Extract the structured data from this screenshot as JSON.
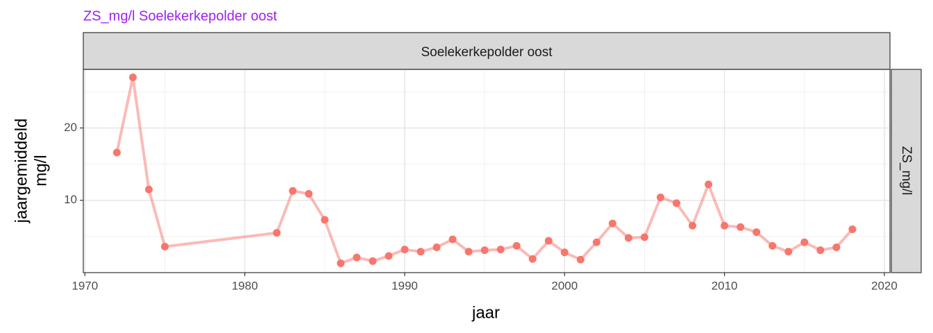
{
  "chart_data": {
    "type": "line",
    "title": "ZS_mg/l Soelekerkepolder oost",
    "title_color": "#a020f0",
    "facet_label": "Soelekerkepolder oost",
    "facet_row_label": "ZS_mg/l",
    "xlabel": "jaar",
    "ylabel": [
      "jaargemiddeld",
      "mg/l"
    ],
    "x": [
      1972,
      1973,
      1974,
      1975,
      1982,
      1983,
      1984,
      1985,
      1986,
      1987,
      1988,
      1989,
      1990,
      1991,
      1992,
      1993,
      1994,
      1995,
      1996,
      1997,
      1998,
      1999,
      2000,
      2001,
      2002,
      2003,
      2004,
      2005,
      2006,
      2007,
      2008,
      2009,
      2010,
      2011,
      2012,
      2013,
      2014,
      2015,
      2016,
      2017,
      2018
    ],
    "values": [
      16.6,
      27.0,
      11.5,
      3.6,
      5.5,
      11.3,
      10.9,
      7.3,
      1.3,
      2.1,
      1.6,
      2.3,
      3.2,
      2.9,
      3.5,
      4.6,
      2.9,
      3.1,
      3.2,
      3.7,
      1.9,
      4.4,
      2.8,
      1.8,
      4.2,
      6.8,
      4.8,
      4.9,
      10.4,
      9.6,
      6.5,
      12.2,
      6.5,
      6.3,
      5.6,
      3.7,
      2.9,
      4.2,
      3.1,
      3.5,
      6.0
    ],
    "color": "#f8766d",
    "xlim": [
      1969.9,
      2020.35
    ],
    "ylim": [
      0,
      28.1
    ],
    "xticks": [
      1970,
      1980,
      1990,
      2000,
      2010,
      2020
    ],
    "yticks": [
      10,
      20
    ],
    "minor_xticks": [
      1975,
      1985,
      1995,
      2005,
      2015
    ],
    "minor_yticks": [
      5,
      15,
      25
    ],
    "grid": true
  }
}
